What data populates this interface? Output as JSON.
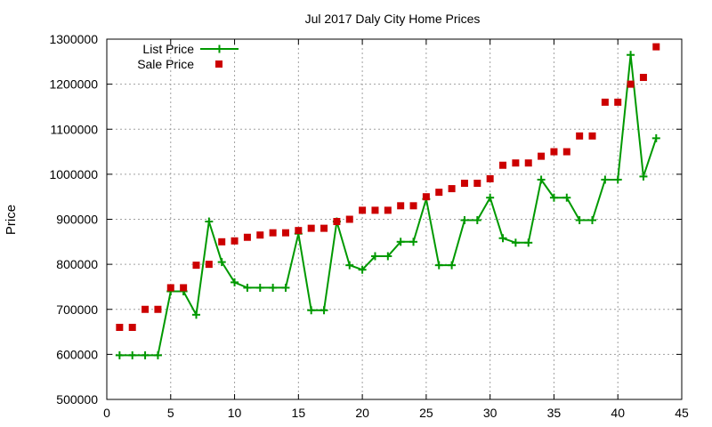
{
  "chart_data": {
    "type": "line",
    "title": "Jul 2017 Daly City Home Prices",
    "xlabel": "",
    "ylabel": "Price",
    "xlim": [
      0,
      45
    ],
    "ylim": [
      500000,
      1300000
    ],
    "xticks": [
      0,
      5,
      10,
      15,
      20,
      25,
      30,
      35,
      40,
      45
    ],
    "xtick_labels": [
      "0",
      "5",
      "10",
      "15",
      "20",
      "25",
      "30",
      "35",
      "40",
      "45"
    ],
    "yticks": [
      500000,
      600000,
      700000,
      800000,
      900000,
      1000000,
      1100000,
      1200000,
      1300000
    ],
    "ytick_labels": [
      "500000",
      "600000",
      "700000",
      "800000",
      "900000",
      "1000000",
      "1100000",
      "1200000",
      "1300000"
    ],
    "grid": true,
    "legend_position": "top-left",
    "x": [
      1,
      2,
      3,
      4,
      5,
      6,
      7,
      8,
      9,
      10,
      11,
      12,
      13,
      14,
      15,
      16,
      17,
      18,
      19,
      20,
      21,
      22,
      23,
      24,
      25,
      26,
      27,
      28,
      29,
      30,
      31,
      32,
      33,
      34,
      35,
      36,
      37,
      38,
      39,
      40,
      41,
      42,
      43
    ],
    "series": [
      {
        "name": "List Price",
        "style": "line-with-plus-markers",
        "color": "#009900",
        "values": [
          598000,
          598000,
          598000,
          598000,
          740000,
          740000,
          688000,
          895000,
          805000,
          760000,
          748000,
          748000,
          748000,
          748000,
          868000,
          698000,
          698000,
          895000,
          798000,
          788000,
          818000,
          818000,
          850000,
          850000,
          945000,
          798000,
          798000,
          898000,
          898000,
          948000,
          858000,
          848000,
          848000,
          988000,
          948000,
          948000,
          898000,
          898000,
          988000,
          988000,
          1265000,
          995000,
          1080000
        ]
      },
      {
        "name": "Sale Price",
        "style": "square-markers",
        "color": "#cc0000",
        "values": [
          660000,
          660000,
          700000,
          700000,
          748000,
          748000,
          798000,
          800000,
          850000,
          852000,
          860000,
          865000,
          870000,
          870000,
          875000,
          880000,
          880000,
          895000,
          900000,
          920000,
          920000,
          920000,
          930000,
          930000,
          950000,
          960000,
          968000,
          980000,
          980000,
          990000,
          1020000,
          1025000,
          1025000,
          1040000,
          1050000,
          1050000,
          1085000,
          1085000,
          1160000,
          1160000,
          1200000,
          1215000,
          1283000
        ]
      }
    ]
  }
}
